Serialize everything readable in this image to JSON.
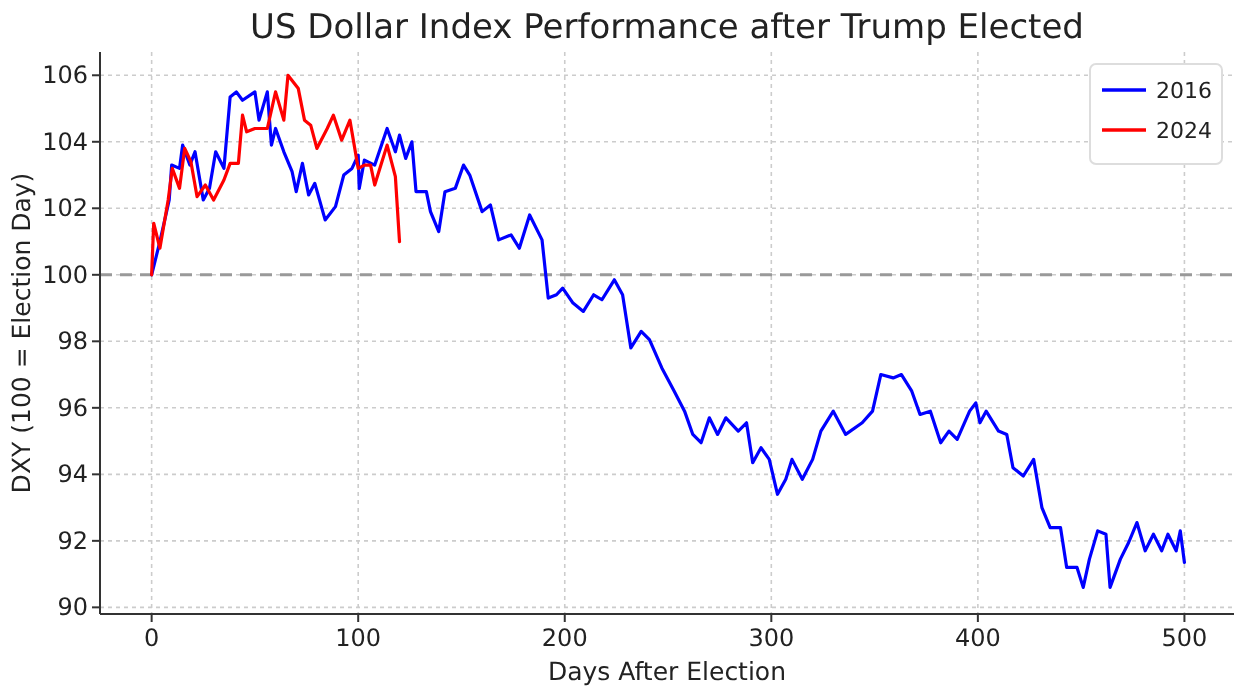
{
  "chart_data": {
    "type": "line",
    "title": "US Dollar Index Performance after Trump Elected",
    "xlabel": "Days After Election",
    "ylabel": "DXY (100 = Election Day)",
    "xlim": [
      -25,
      524
    ],
    "xticks": [
      0,
      100,
      200,
      300,
      400,
      500
    ],
    "ylim": [
      89.8,
      106.7
    ],
    "yticks": [
      90,
      92,
      94,
      96,
      98,
      100,
      102,
      104,
      106
    ],
    "grid": true,
    "legend": "top right",
    "line_style": "solid",
    "marker": "none",
    "ref_lines": [
      {
        "axis": "y",
        "value": 100,
        "label": null,
        "color": "#999999",
        "line_style": "dashed"
      }
    ],
    "series": [
      {
        "name": "2016",
        "color": "#0000ff",
        "x": [
          0,
          4,
          8.5,
          9.7,
          13.5,
          15,
          18.5,
          21,
          25,
          28,
          31,
          35,
          38,
          41,
          44,
          50,
          52,
          56,
          58,
          60,
          64,
          68,
          70,
          73,
          76,
          79,
          84,
          89,
          93,
          97,
          100,
          100.5,
          103,
          108,
          114,
          118,
          120,
          123,
          126,
          128,
          133,
          135,
          139,
          142,
          147,
          151,
          154,
          160,
          164,
          168,
          174,
          178,
          183,
          189,
          192,
          196,
          199,
          204,
          209,
          214,
          218,
          224,
          228,
          232,
          237,
          241,
          247,
          253,
          258,
          262,
          266,
          270,
          274,
          278,
          284,
          288,
          291,
          295,
          299,
          303,
          307,
          310,
          315,
          320,
          324,
          330,
          336,
          344,
          349,
          353,
          359,
          363,
          368,
          372,
          377,
          382,
          386,
          390,
          396,
          399,
          401,
          404,
          410,
          414,
          417,
          422,
          427,
          431,
          435,
          440,
          443,
          448,
          451,
          454,
          458,
          462,
          464,
          469,
          473,
          477,
          481,
          485,
          489,
          492,
          496,
          498,
          500
        ],
        "values": [
          100,
          101,
          102.25,
          103.3,
          103.2,
          103.9,
          103.3,
          103.7,
          102.25,
          102.6,
          103.7,
          103.2,
          105.35,
          105.5,
          105.25,
          105.5,
          104.65,
          105.5,
          103.9,
          104.4,
          103.7,
          103.1,
          102.5,
          103.35,
          102.4,
          102.75,
          101.65,
          102.05,
          103,
          103.2,
          103.6,
          102.6,
          103.45,
          103.3,
          104.4,
          103.7,
          104.2,
          103.5,
          104,
          102.5,
          102.5,
          101.9,
          101.3,
          102.5,
          102.6,
          103.3,
          103,
          101.9,
          102.1,
          101.05,
          101.2,
          100.8,
          101.8,
          101.05,
          99.3,
          99.4,
          99.6,
          99.15,
          98.9,
          99.4,
          99.25,
          99.85,
          99.4,
          97.8,
          98.3,
          98.05,
          97.2,
          96.5,
          95.9,
          95.2,
          94.95,
          95.7,
          95.2,
          95.7,
          95.3,
          95.55,
          94.35,
          94.8,
          94.45,
          93.4,
          93.85,
          94.45,
          93.85,
          94.45,
          95.3,
          95.9,
          95.2,
          95.55,
          95.9,
          97,
          96.9,
          97,
          96.5,
          95.8,
          95.9,
          94.95,
          95.3,
          95.05,
          95.9,
          96.15,
          95.55,
          95.9,
          95.3,
          95.2,
          94.2,
          93.95,
          94.45,
          93,
          92.4,
          92.4,
          91.2,
          91.2,
          90.6,
          91.45,
          92.3,
          92.2,
          90.6,
          91.45,
          91.95,
          92.55,
          91.7,
          92.2,
          91.7,
          92.2,
          91.7,
          92.3,
          91.35
        ]
      },
      {
        "name": "2024",
        "color": "#ff0000",
        "x": [
          0,
          1,
          4,
          8,
          10,
          13.5,
          16,
          19,
          22,
          26,
          30,
          35,
          38,
          42,
          44,
          46,
          50,
          56,
          60,
          64,
          66,
          71,
          74,
          77,
          80,
          85,
          88,
          92,
          96,
          100,
          103,
          106,
          108,
          111,
          114,
          118,
          120
        ],
        "values": [
          100,
          101.55,
          100.8,
          102.25,
          103.2,
          102.6,
          103.8,
          103.4,
          102.35,
          102.7,
          102.25,
          102.85,
          103.35,
          103.35,
          104.8,
          104.3,
          104.4,
          104.4,
          105.5,
          104.65,
          106,
          105.6,
          104.65,
          104.5,
          103.8,
          104.4,
          104.8,
          104.05,
          104.65,
          103.2,
          103.3,
          103.3,
          102.7,
          103.3,
          103.9,
          102.95,
          101
        ]
      }
    ]
  }
}
